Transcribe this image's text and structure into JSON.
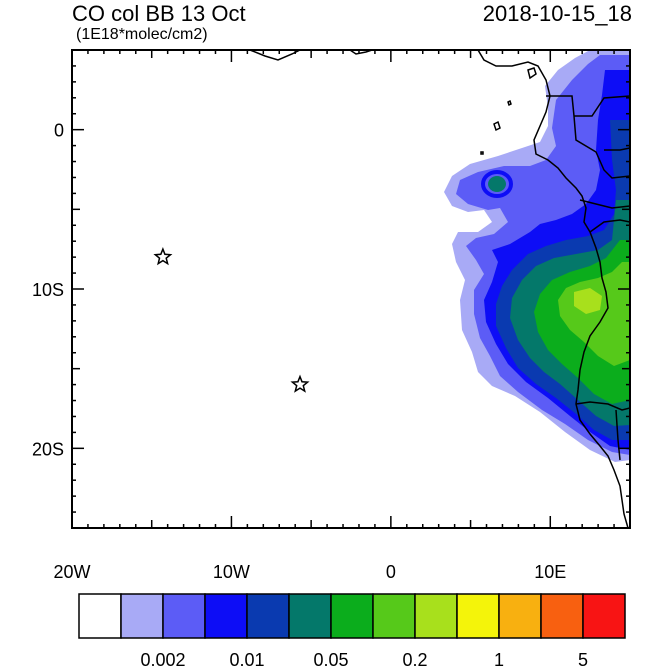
{
  "title": "CO col BB 13 Oct",
  "units": "(1E18*molec/cm2)",
  "timestamp": "2018-10-15_18",
  "map": {
    "lon_range": [
      -20,
      15
    ],
    "lat_range": [
      -25,
      5
    ],
    "lon_labels": [
      {
        "lon": -20,
        "text": "20W"
      },
      {
        "lon": -10,
        "text": "10W"
      },
      {
        "lon": 0,
        "text": "0"
      },
      {
        "lon": 10,
        "text": "10E"
      }
    ],
    "lat_labels": [
      {
        "lat": 0,
        "text": "0"
      },
      {
        "lat": -10,
        "text": "10S"
      },
      {
        "lat": -20,
        "text": "20S"
      }
    ],
    "markers": [
      {
        "name": "star-marker",
        "lon": -14.3,
        "lat": -8.0
      },
      {
        "name": "star-marker",
        "lon": -5.7,
        "lat": -16.0
      }
    ]
  },
  "colorbar": {
    "colors": [
      "#ffffff",
      "#a8aaf6",
      "#5c5cf6",
      "#0d0df6",
      "#0a3ab0",
      "#04786a",
      "#0bad1c",
      "#56c91a",
      "#a8e01c",
      "#f4f40a",
      "#f8b010",
      "#f86010",
      "#f81414"
    ],
    "labels": [
      {
        "boundary": 2,
        "text": "0.002"
      },
      {
        "boundary": 4,
        "text": "0.01"
      },
      {
        "boundary": 6,
        "text": "0.05"
      },
      {
        "boundary": 8,
        "text": "0.2"
      },
      {
        "boundary": 10,
        "text": "1"
      },
      {
        "boundary": 12,
        "text": "5"
      }
    ]
  }
}
